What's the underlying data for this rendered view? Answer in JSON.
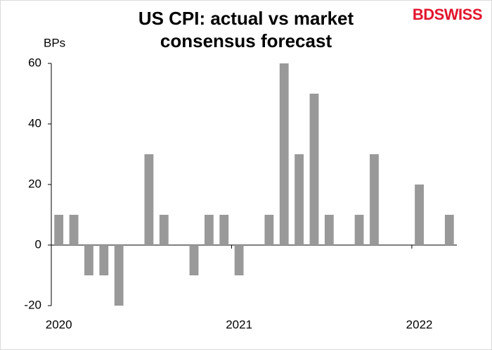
{
  "logo": "BDSWISS",
  "chart_data": {
    "type": "bar",
    "title": "US CPI: actual vs market consensus forecast",
    "y_label": "BPs",
    "categories": [
      "2020",
      null,
      null,
      null,
      null,
      null,
      null,
      null,
      null,
      null,
      null,
      null,
      "2021",
      null,
      null,
      null,
      null,
      null,
      null,
      null,
      null,
      null,
      null,
      null,
      "2022",
      null,
      null
    ],
    "values": [
      10,
      10,
      -10,
      -10,
      -20,
      0,
      30,
      10,
      0,
      -10,
      10,
      10,
      -10,
      0,
      10,
      60,
      30,
      50,
      10,
      0,
      10,
      30,
      0,
      0,
      20,
      0,
      10
    ],
    "color": "#999999",
    "ylim": [
      -20,
      60
    ],
    "yticks": [
      -20,
      0,
      20,
      40,
      60
    ],
    "grid": false
  }
}
